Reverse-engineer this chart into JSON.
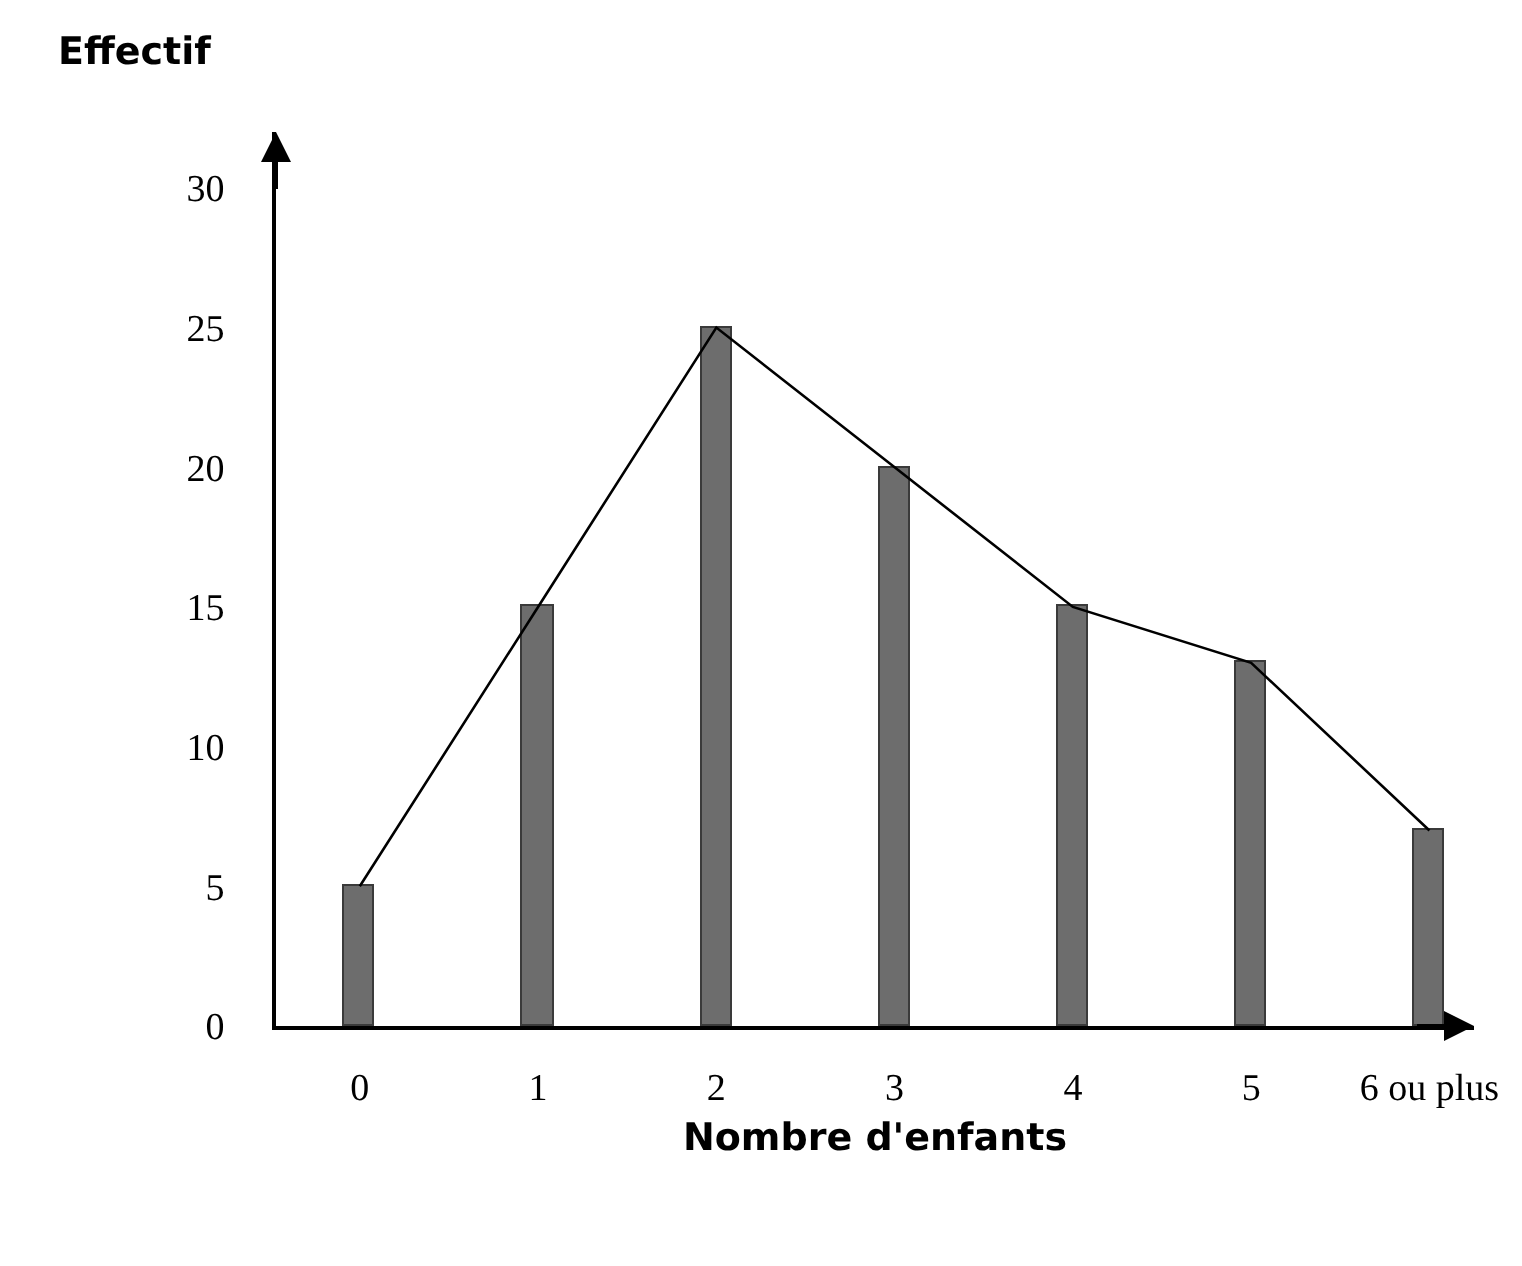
{
  "chart_data": {
    "type": "bar",
    "xlabel": "Nombre d'enfants",
    "ylabel": "Effectif",
    "categories": [
      "0",
      "1",
      "2",
      "3",
      "4",
      "5",
      "6 ou plus"
    ],
    "series": [
      {
        "color": "#6d6d6d",
        "values": [
          5,
          15,
          25,
          20,
          15,
          13,
          7
        ]
      },
      {
        "type": "line",
        "color": "#000000",
        "values": [
          5,
          15,
          25,
          20,
          15,
          13,
          7
        ],
        "marker": "none",
        "line_style": "solid"
      }
    ],
    "ylim": [
      0,
      32
    ],
    "yticks": [
      0,
      5,
      10,
      15,
      20,
      25,
      30
    ]
  }
}
